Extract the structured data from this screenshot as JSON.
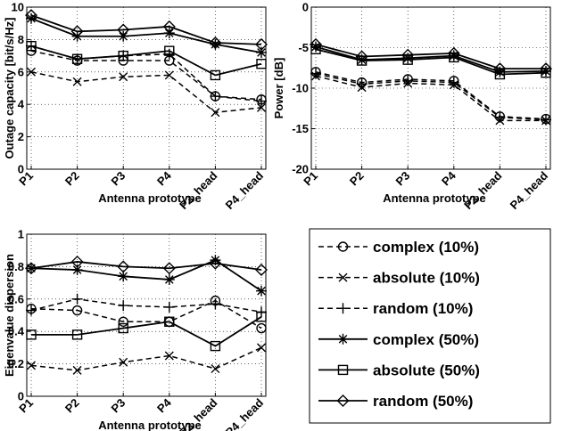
{
  "legend": {
    "entries": [
      {
        "label": "complex (10%)",
        "marker": "circle",
        "dash": true
      },
      {
        "label": "absolute (10%)",
        "marker": "x",
        "dash": true
      },
      {
        "label": "random (10%)",
        "marker": "plus",
        "dash": true
      },
      {
        "label": "complex (50%)",
        "marker": "star",
        "dash": false
      },
      {
        "label": "absolute (50%)",
        "marker": "square",
        "dash": false
      },
      {
        "label": "random (50%)",
        "marker": "diamond",
        "dash": false
      }
    ]
  },
  "chart_data": [
    {
      "type": "line",
      "categories": [
        "P1",
        "P2",
        "P3",
        "P4",
        "P3_head",
        "P4_head"
      ],
      "xlabel": "Antenna prototype",
      "ylabel": "Outage capacity [bit/s/Hz]",
      "ylim": [
        0,
        10
      ],
      "yticks": [
        0,
        2,
        4,
        6,
        8,
        10
      ],
      "grid": true,
      "series": [
        {
          "name": "complex (10%)",
          "marker": "circle",
          "dash": true,
          "values": [
            7.3,
            6.7,
            6.7,
            6.7,
            4.5,
            4.3
          ]
        },
        {
          "name": "absolute (10%)",
          "marker": "x",
          "dash": true,
          "values": [
            6.0,
            5.4,
            5.7,
            5.8,
            3.5,
            3.8
          ]
        },
        {
          "name": "random (10%)",
          "marker": "plus",
          "dash": true,
          "values": [
            7.6,
            6.8,
            7.0,
            7.1,
            4.5,
            4.2
          ]
        },
        {
          "name": "complex (50%)",
          "marker": "star",
          "dash": false,
          "values": [
            9.3,
            8.2,
            8.2,
            8.4,
            7.7,
            7.2
          ]
        },
        {
          "name": "absolute (50%)",
          "marker": "square",
          "dash": false,
          "values": [
            7.6,
            6.8,
            7.0,
            7.3,
            5.8,
            6.5
          ]
        },
        {
          "name": "random (50%)",
          "marker": "diamond",
          "dash": false,
          "values": [
            9.5,
            8.5,
            8.6,
            8.8,
            7.8,
            7.7
          ]
        }
      ]
    },
    {
      "type": "line",
      "categories": [
        "P1",
        "P2",
        "P3",
        "P4",
        "P3_head",
        "P4_head"
      ],
      "xlabel": "Antenna prototype",
      "ylabel": "Power [dB]",
      "ylim": [
        -20,
        0
      ],
      "yticks": [
        -20,
        -15,
        -10,
        -5,
        0
      ],
      "grid": true,
      "series": [
        {
          "name": "complex (10%)",
          "marker": "circle",
          "dash": true,
          "values": [
            -8.0,
            -9.3,
            -8.9,
            -9.1,
            -13.5,
            -13.8
          ]
        },
        {
          "name": "absolute (10%)",
          "marker": "x",
          "dash": true,
          "values": [
            -8.5,
            -9.9,
            -9.4,
            -9.6,
            -14.0,
            -14.0
          ]
        },
        {
          "name": "random (10%)",
          "marker": "plus",
          "dash": true,
          "values": [
            -8.2,
            -9.5,
            -9.1,
            -9.3,
            -13.6,
            -13.9
          ]
        },
        {
          "name": "complex (50%)",
          "marker": "star",
          "dash": false,
          "values": [
            -4.9,
            -6.5,
            -6.3,
            -6.0,
            -8.0,
            -7.9
          ]
        },
        {
          "name": "absolute (50%)",
          "marker": "square",
          "dash": false,
          "values": [
            -5.2,
            -6.6,
            -6.5,
            -6.2,
            -8.3,
            -8.1
          ]
        },
        {
          "name": "random (50%)",
          "marker": "diamond",
          "dash": false,
          "values": [
            -4.6,
            -6.1,
            -5.9,
            -5.7,
            -7.6,
            -7.6
          ]
        }
      ]
    },
    {
      "type": "line",
      "categories": [
        "P1",
        "P2",
        "P3",
        "P4",
        "P3_head",
        "P4_head"
      ],
      "xlabel": "Antenna prototype",
      "ylabel": "Eigenvalue dispersion",
      "ylim": [
        0,
        1
      ],
      "yticks": [
        0,
        0.2,
        0.4,
        0.6,
        0.8,
        1
      ],
      "grid": true,
      "series": [
        {
          "name": "complex (10%)",
          "marker": "circle",
          "dash": true,
          "values": [
            0.54,
            0.53,
            0.46,
            0.46,
            0.59,
            0.42
          ]
        },
        {
          "name": "absolute (10%)",
          "marker": "x",
          "dash": true,
          "values": [
            0.19,
            0.16,
            0.21,
            0.25,
            0.17,
            0.3
          ]
        },
        {
          "name": "random (10%)",
          "marker": "plus",
          "dash": true,
          "values": [
            0.53,
            0.6,
            0.56,
            0.55,
            0.57,
            0.52
          ]
        },
        {
          "name": "complex (50%)",
          "marker": "star",
          "dash": false,
          "values": [
            0.79,
            0.78,
            0.74,
            0.72,
            0.84,
            0.65
          ]
        },
        {
          "name": "absolute (50%)",
          "marker": "square",
          "dash": false,
          "values": [
            0.38,
            0.38,
            0.42,
            0.46,
            0.31,
            0.49
          ]
        },
        {
          "name": "random (50%)",
          "marker": "diamond",
          "dash": false,
          "values": [
            0.79,
            0.83,
            0.8,
            0.79,
            0.82,
            0.78
          ]
        }
      ]
    }
  ]
}
